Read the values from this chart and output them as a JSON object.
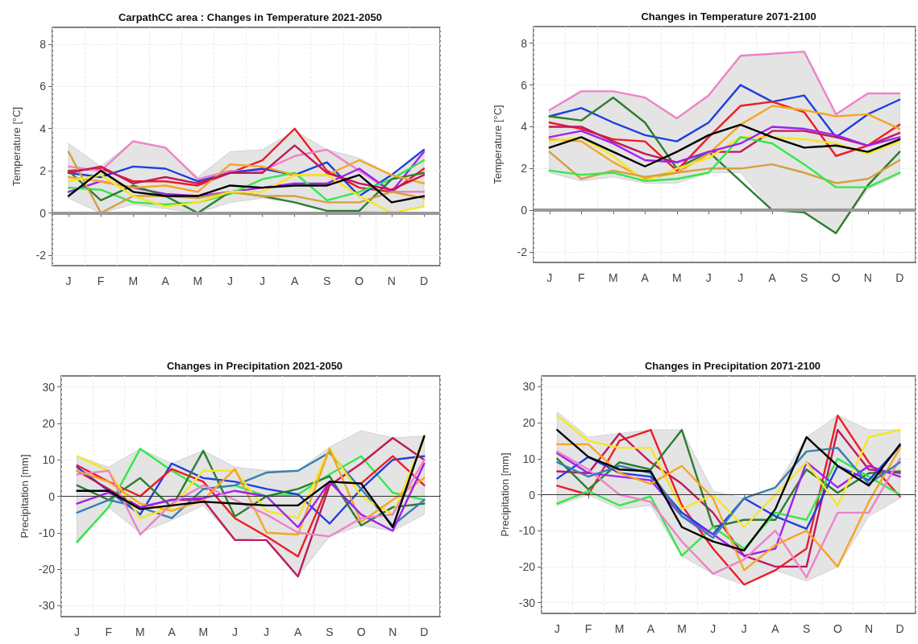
{
  "chart_data": [
    {
      "type": "line",
      "title": "CarpathCC area : Changes in Temperature 2021-2050",
      "ylabel": "Temperature [°C]",
      "categories": [
        "J",
        "F",
        "M",
        "A",
        "M",
        "J",
        "J",
        "A",
        "S",
        "O",
        "N",
        "D"
      ],
      "ylim": [
        -2.5,
        8.8
      ],
      "yticks": [
        -2,
        0,
        2,
        4,
        6,
        8
      ],
      "grid": true,
      "ref_lines": [
        {
          "axis": "y",
          "value": 0,
          "color": "#999999"
        }
      ],
      "series": [
        {
          "color": "#000000",
          "values": [
            0.8,
            2.0,
            1.0,
            0.8,
            0.8,
            1.3,
            1.2,
            1.3,
            1.3,
            1.8,
            0.5,
            0.8
          ],
          "lower": [
            0.7,
            0.0,
            0.4,
            0.2,
            0.0,
            0.5,
            0.7,
            0.5,
            0.1,
            0.1,
            0.0,
            0.3
          ],
          "upper": [
            3.3,
            2.2,
            3.4,
            3.1,
            1.7,
            2.9,
            3.0,
            3.9,
            3.0,
            2.6,
            1.8,
            3.0
          ]
        },
        {
          "color": "#ee1c25",
          "values": [
            2.0,
            2.1,
            1.5,
            1.5,
            1.3,
            1.9,
            2.5,
            4.0,
            2.0,
            1.2,
            1.0,
            2.1
          ]
        },
        {
          "color": "#ee82c8",
          "values": [
            2.2,
            2.0,
            3.4,
            3.1,
            1.6,
            2.0,
            2.0,
            2.7,
            3.0,
            2.0,
            1.0,
            1.0
          ]
        },
        {
          "color": "#1f3fe0",
          "values": [
            1.9,
            1.7,
            2.2,
            2.1,
            1.5,
            1.9,
            2.1,
            1.8,
            2.4,
            0.8,
            1.8,
            3.0
          ]
        },
        {
          "color": "#a020f0",
          "values": [
            1.0,
            1.5,
            1.2,
            0.9,
            0.8,
            1.0,
            1.2,
            1.4,
            1.4,
            2.1,
            1.0,
            2.9
          ]
        },
        {
          "color": "#33e84a",
          "values": [
            1.2,
            1.1,
            0.5,
            0.4,
            0.5,
            0.9,
            1.6,
            1.9,
            0.6,
            1.0,
            1.6,
            2.5
          ]
        },
        {
          "color": "#2e7d32",
          "values": [
            2.0,
            0.6,
            1.3,
            0.8,
            0.0,
            1.0,
            0.8,
            0.5,
            0.1,
            0.1,
            1.6,
            1.9
          ]
        },
        {
          "color": "#d4a040",
          "values": [
            2.9,
            0.0,
            0.8,
            0.8,
            0.7,
            1.0,
            0.8,
            0.8,
            0.5,
            0.5,
            1.0,
            0.7
          ]
        },
        {
          "color": "#f5a623",
          "values": [
            1.7,
            1.5,
            1.2,
            1.3,
            1.0,
            2.3,
            2.2,
            1.8,
            1.8,
            2.5,
            1.8,
            1.4
          ]
        },
        {
          "color": "#f5e625",
          "values": [
            1.5,
            1.8,
            0.8,
            0.3,
            0.5,
            1.0,
            1.0,
            1.8,
            1.8,
            0.8,
            0.0,
            0.3
          ]
        },
        {
          "color": "#c2185b",
          "values": [
            1.9,
            2.2,
            1.4,
            1.7,
            1.4,
            1.9,
            1.9,
            3.2,
            1.9,
            1.4,
            1.1,
            1.8
          ]
        }
      ]
    },
    {
      "type": "line",
      "title": "Changes in Temperature 2071-2100",
      "ylabel": "Temperature [°C]",
      "categories": [
        "J",
        "F",
        "M",
        "A",
        "M",
        "J",
        "J",
        "A",
        "S",
        "O",
        "N",
        "D"
      ],
      "ylim": [
        -2.5,
        8.8
      ],
      "yticks": [
        -2,
        0,
        2,
        4,
        6,
        8
      ],
      "grid": true,
      "ref_lines": [
        {
          "axis": "y",
          "value": 0,
          "color": "#999999"
        }
      ],
      "series": [
        {
          "color": "#000000",
          "values": [
            3.0,
            3.5,
            2.8,
            2.1,
            2.8,
            3.6,
            4.1,
            3.5,
            3.0,
            3.1,
            2.8,
            3.4
          ],
          "lower": [
            1.8,
            1.4,
            1.6,
            1.3,
            1.3,
            1.8,
            1.8,
            0.0,
            -0.1,
            -1.1,
            1.0,
            1.7
          ],
          "upper": [
            4.8,
            5.7,
            5.7,
            5.4,
            4.4,
            5.5,
            7.4,
            7.5,
            7.6,
            4.6,
            5.6,
            5.6
          ]
        },
        {
          "color": "#ee82c8",
          "values": [
            4.8,
            5.7,
            5.7,
            5.4,
            4.4,
            5.5,
            7.4,
            7.5,
            7.6,
            4.6,
            5.6,
            5.6
          ]
        },
        {
          "color": "#1f3fe0",
          "values": [
            4.5,
            4.9,
            4.2,
            3.6,
            3.3,
            4.2,
            6.0,
            5.2,
            5.5,
            3.5,
            4.6,
            5.3
          ]
        },
        {
          "color": "#2e7d32",
          "values": [
            4.5,
            4.3,
            5.4,
            4.2,
            2.0,
            2.8,
            1.4,
            0.0,
            -0.1,
            -1.1,
            1.2,
            2.8
          ]
        },
        {
          "color": "#ee1c25",
          "values": [
            4.2,
            3.9,
            3.4,
            3.3,
            1.9,
            3.5,
            5.0,
            5.2,
            4.7,
            2.6,
            3.1,
            4.1
          ]
        },
        {
          "color": "#c2185b",
          "values": [
            4.0,
            4.0,
            3.3,
            2.7,
            2.3,
            2.8,
            2.8,
            3.8,
            3.8,
            3.5,
            3.1,
            3.7
          ]
        },
        {
          "color": "#f5a623",
          "values": [
            3.4,
            3.3,
            2.3,
            1.5,
            1.8,
            2.7,
            4.1,
            5.0,
            4.8,
            4.5,
            4.6,
            3.9
          ]
        },
        {
          "color": "#f5e625",
          "values": [
            3.3,
            3.5,
            2.6,
            1.4,
            2.0,
            2.5,
            3.5,
            3.5,
            3.4,
            3.2,
            2.7,
            3.3
          ]
        },
        {
          "color": "#d4a040",
          "values": [
            2.8,
            1.5,
            1.9,
            1.6,
            1.8,
            2.0,
            2.0,
            2.2,
            1.8,
            1.3,
            1.5,
            2.4
          ]
        },
        {
          "color": "#33e84a",
          "values": [
            1.9,
            1.7,
            1.8,
            1.4,
            1.5,
            1.8,
            3.5,
            3.2,
            2.2,
            1.1,
            1.1,
            1.8
          ]
        },
        {
          "color": "#a020f0",
          "values": [
            3.5,
            3.8,
            3.2,
            2.4,
            2.3,
            2.8,
            3.2,
            4.0,
            3.9,
            3.6,
            3.1,
            3.5
          ]
        }
      ]
    },
    {
      "type": "line",
      "title": "Changes in Precipitation 2021-2050",
      "ylabel": "Precipitation [mm]",
      "categories": [
        "J",
        "F",
        "M",
        "A",
        "M",
        "J",
        "J",
        "A",
        "S",
        "O",
        "N",
        "D"
      ],
      "ylim": [
        -33,
        33
      ],
      "yticks": [
        -30,
        -20,
        -10,
        0,
        10,
        20,
        30
      ],
      "grid": true,
      "ref_lines": [
        {
          "axis": "y",
          "value": 0,
          "color": "#333333"
        }
      ],
      "series": [
        {
          "color": "#000000",
          "values": [
            1.5,
            1.5,
            -3.5,
            -2.5,
            -1.5,
            -2,
            -2.5,
            -2.5,
            4,
            3.5,
            -8.5,
            16.5
          ],
          "lower": [
            -13,
            -3,
            -10,
            -6.5,
            -2.5,
            -12,
            -11,
            -22,
            -11,
            -8,
            -9.5,
            -5
          ],
          "upper": [
            11,
            8,
            13,
            9,
            12.5,
            8,
            7,
            7,
            13.5,
            18,
            16,
            16.5
          ]
        },
        {
          "color": "#33e84a",
          "values": [
            -12.5,
            -3,
            13,
            7,
            2,
            3,
            0,
            0.5,
            6,
            11,
            1,
            -1
          ]
        },
        {
          "color": "#1f3fe0",
          "values": [
            8,
            1.5,
            -5,
            9,
            5,
            4,
            2,
            0.5,
            -7.5,
            2,
            10,
            11
          ]
        },
        {
          "color": "#ee1c25",
          "values": [
            8.5,
            4,
            0,
            7.5,
            4,
            -6,
            -11,
            -16.5,
            4,
            3.5,
            11,
            3
          ]
        },
        {
          "color": "#c2185b",
          "values": [
            7,
            2,
            -3,
            -1,
            -1,
            -12,
            -12,
            -22,
            3,
            9,
            16,
            10
          ]
        },
        {
          "color": "#2e7d32",
          "values": [
            3,
            -1,
            5,
            -3,
            12.5,
            -5.5,
            0,
            2,
            5.5,
            -8,
            -3,
            -2
          ]
        },
        {
          "color": "#3a7fb0",
          "values": [
            -4.5,
            -1,
            -3,
            -6,
            2,
            3,
            6.5,
            7,
            12,
            2,
            -8,
            -1
          ]
        },
        {
          "color": "#f5e625",
          "values": [
            11,
            7,
            -6,
            -3,
            7,
            7,
            -4,
            -6,
            13,
            0,
            -5,
            16
          ]
        },
        {
          "color": "#f5a623",
          "values": [
            7,
            4,
            -2,
            -4,
            -1,
            7.5,
            -10,
            -10.5,
            13,
            -7,
            -1,
            5
          ]
        },
        {
          "color": "#a020f0",
          "values": [
            -2,
            1,
            -3,
            -1,
            -0.5,
            1.5,
            0,
            -8.5,
            4,
            -5,
            -9.5,
            9
          ]
        },
        {
          "color": "#ee82c8",
          "values": [
            6,
            7,
            -10.5,
            -2,
            3,
            -1,
            -5,
            -10,
            -11,
            -6,
            -5,
            10
          ]
        }
      ]
    },
    {
      "type": "line",
      "title": "Changes in Precipitation 2071-2100",
      "ylabel": "Precipitation [mm]",
      "categories": [
        "J",
        "F",
        "M",
        "A",
        "M",
        "J",
        "J",
        "A",
        "S",
        "O",
        "N",
        "D"
      ],
      "ylim": [
        -33,
        33
      ],
      "yticks": [
        -30,
        -20,
        -10,
        0,
        10,
        20,
        30
      ],
      "grid": true,
      "ref_lines": [
        {
          "axis": "y",
          "value": 0,
          "color": "#333333"
        }
      ],
      "series": [
        {
          "color": "#000000",
          "values": [
            18,
            10.5,
            7,
            6.5,
            -9,
            -13,
            -15.5,
            -4,
            16,
            8,
            2.5,
            14
          ],
          "lower": [
            -3,
            0,
            -4,
            -3,
            -17,
            -22,
            -25,
            -21,
            -24,
            -20,
            -6,
            -1
          ],
          "upper": [
            23,
            16,
            17,
            18,
            18,
            1,
            -1,
            2,
            16,
            22,
            18,
            18
          ]
        },
        {
          "color": "#ee1c25",
          "values": [
            2.5,
            0,
            15,
            18,
            -3,
            -15,
            -25,
            -21,
            -15,
            22,
            9,
            -0.5
          ]
        },
        {
          "color": "#c2185b",
          "values": [
            6.5,
            6,
            17,
            9,
            3,
            -5,
            -17,
            -20,
            -20,
            18,
            7,
            6
          ]
        },
        {
          "color": "#2e7d32",
          "values": [
            10,
            1.5,
            9,
            7,
            18,
            -9,
            -7,
            -7,
            7,
            0.5,
            6,
            6.5
          ]
        },
        {
          "color": "#33e84a",
          "values": [
            -2.5,
            1,
            -3,
            -0.5,
            -17,
            -9,
            -15,
            -5,
            -7,
            10,
            5,
            0
          ]
        },
        {
          "color": "#1f3fe0",
          "values": [
            4.5,
            10.5,
            6,
            5,
            -5,
            -11,
            -1,
            -6,
            -9.5,
            8,
            4,
            13.5
          ]
        },
        {
          "color": "#a020f0",
          "values": [
            11.5,
            6,
            5,
            4,
            -6,
            -11,
            -17,
            -15,
            9,
            2,
            8,
            5
          ]
        },
        {
          "color": "#ee82c8",
          "values": [
            12,
            7,
            0,
            -2,
            -13,
            -22,
            -18,
            -10,
            -23,
            -5,
            -5,
            10
          ]
        },
        {
          "color": "#f5e625",
          "values": [
            22,
            15,
            13,
            13,
            -4,
            0,
            -9,
            0,
            9,
            -3,
            16,
            18
          ]
        },
        {
          "color": "#f5a623",
          "values": [
            14,
            14,
            6,
            3,
            8,
            -1,
            -21,
            -14,
            -10,
            -20,
            -2,
            13
          ]
        },
        {
          "color": "#3a7fb0",
          "values": [
            9,
            5,
            8,
            6,
            -6,
            -12,
            -1,
            2,
            12,
            13,
            3,
            9
          ]
        }
      ]
    }
  ]
}
